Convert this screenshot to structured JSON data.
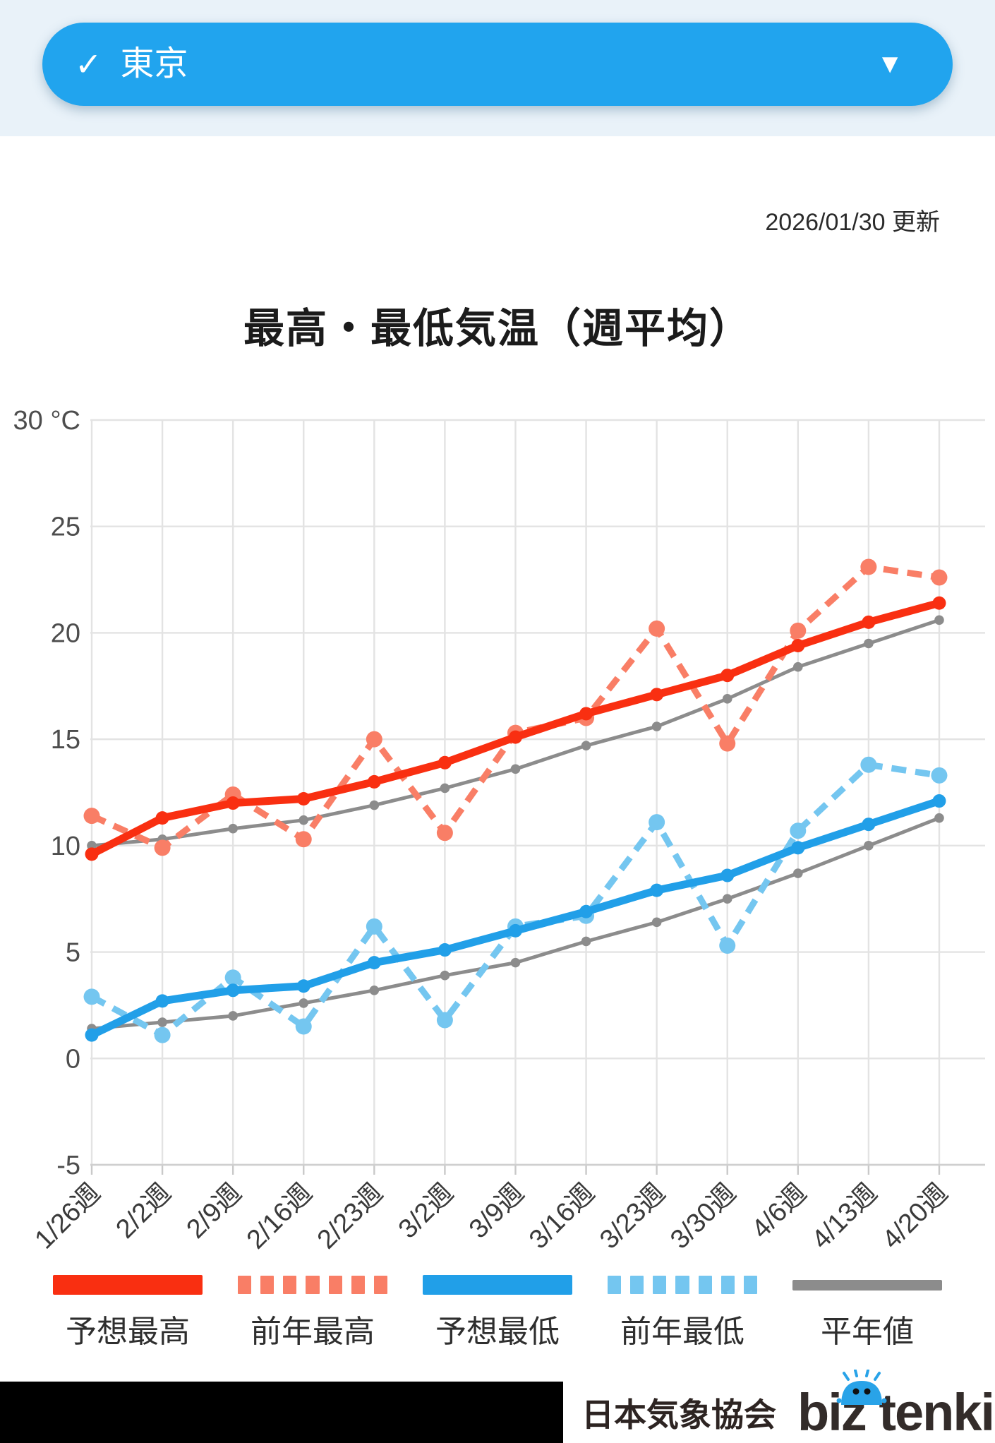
{
  "header": {
    "location": "東京",
    "check_icon": "✓",
    "dropdown_icon": "▼"
  },
  "meta": {
    "updated": "2026/01/30 更新"
  },
  "title": "最高・最低気温（週平均）",
  "chart_data": {
    "type": "line",
    "title": "最高・最低気温（週平均）",
    "unit": "°C",
    "grid": true,
    "legend_position": "bottom",
    "categories": [
      "1/26週",
      "2/2週",
      "2/9週",
      "2/16週",
      "2/23週",
      "3/2週",
      "3/9週",
      "3/16週",
      "3/23週",
      "3/30週",
      "4/6週",
      "4/13週",
      "4/20週"
    ],
    "y_axis": {
      "min": -5,
      "max": 30,
      "step": 5,
      "ticks": [
        {
          "value": 30,
          "label": "30 °C"
        },
        {
          "value": 25,
          "label": "25"
        },
        {
          "value": 20,
          "label": "20"
        },
        {
          "value": 15,
          "label": "15"
        },
        {
          "value": 10,
          "label": "10"
        },
        {
          "value": 5,
          "label": "5"
        },
        {
          "value": 0,
          "label": "0"
        },
        {
          "value": -5,
          "label": "-5"
        }
      ]
    },
    "draw_order": [
      "normal-high",
      "normal-low",
      "lastyear-high",
      "lastyear-low",
      "forecast-high",
      "forecast-low"
    ],
    "series": [
      {
        "key": "forecast-high",
        "name": "予想最高",
        "style": "solid",
        "thin": false,
        "color": "#f92f11",
        "values": [
          9.6,
          11.3,
          12.0,
          12.2,
          13.0,
          13.9,
          15.1,
          16.2,
          17.1,
          18.0,
          19.4,
          20.5,
          21.4
        ]
      },
      {
        "key": "lastyear-high",
        "name": "前年最高",
        "style": "dashed",
        "thin": false,
        "color": "#f97e66",
        "values": [
          11.4,
          9.9,
          12.4,
          10.3,
          15.0,
          10.6,
          15.3,
          16.0,
          20.2,
          14.8,
          20.1,
          23.1,
          22.6
        ]
      },
      {
        "key": "forecast-low",
        "name": "予想最低",
        "style": "solid",
        "thin": false,
        "color": "#219fe8",
        "values": [
          1.1,
          2.7,
          3.2,
          3.4,
          4.5,
          5.1,
          6.0,
          6.9,
          7.9,
          8.6,
          9.9,
          11.0,
          12.1
        ]
      },
      {
        "key": "lastyear-low",
        "name": "前年最低",
        "style": "dashed",
        "thin": false,
        "color": "#74c6f0",
        "values": [
          2.9,
          1.1,
          3.8,
          1.5,
          6.2,
          1.8,
          6.2,
          6.7,
          11.1,
          5.3,
          10.7,
          13.8,
          13.3
        ]
      },
      {
        "key": "normal-high",
        "name": "平年値",
        "style": "solid",
        "thin": true,
        "color": "#8c8c8c",
        "values": [
          10.0,
          10.3,
          10.8,
          11.2,
          11.9,
          12.7,
          13.6,
          14.7,
          15.6,
          16.9,
          18.4,
          19.5,
          20.6
        ]
      },
      {
        "key": "normal-low",
        "name": "平年値(最低)",
        "style": "solid",
        "thin": true,
        "color": "#8c8c8c",
        "values": [
          1.4,
          1.7,
          2.0,
          2.6,
          3.2,
          3.9,
          4.5,
          5.5,
          6.4,
          7.5,
          8.7,
          10.0,
          11.3
        ]
      }
    ]
  },
  "legend": [
    {
      "key": "forecast-high",
      "label": "予想最高",
      "color": "#f92f11",
      "style": "solid"
    },
    {
      "key": "lastyear-high",
      "label": "前年最高",
      "color": "#f97e66",
      "style": "dashed"
    },
    {
      "key": "forecast-low",
      "label": "予想最低",
      "color": "#219fe8",
      "style": "solid"
    },
    {
      "key": "lastyear-low",
      "label": "前年最低",
      "color": "#74c6f0",
      "style": "dashed"
    },
    {
      "key": "normal",
      "label": "平年値",
      "color": "#8c8c8c",
      "style": "thin"
    }
  ],
  "footer": {
    "agency": "日本気象協会",
    "brand": "biz tenki"
  },
  "colors": {
    "header_strip": "#e9f2f9",
    "accent_blue": "#21a4ee",
    "red_solid": "#f92f11",
    "red_dashed": "#f97e66",
    "blue_solid": "#219fe8",
    "blue_dashed": "#74c6f0",
    "gray_line": "#8c8c8c",
    "gridline": "#e3e3e3"
  }
}
